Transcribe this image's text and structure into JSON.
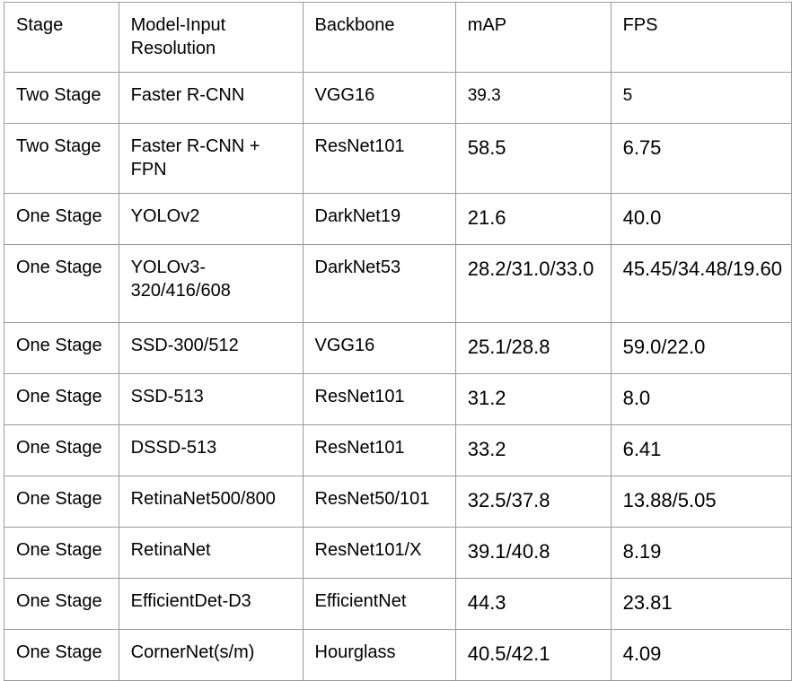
{
  "table": {
    "headers": [
      "Stage",
      "Model-Input Resolution",
      "Backbone",
      "mAP",
      "FPS"
    ],
    "rows": [
      {
        "stage": "Two Stage",
        "model": "Faster R-CNN",
        "backbone": "VGG16",
        "map": "39.3",
        "fps": "5"
      },
      {
        "stage": "Two Stage",
        "model": "Faster R-CNN + FPN",
        "backbone": "ResNet101",
        "map": "58.5",
        "fps": "6.75"
      },
      {
        "stage": "One Stage",
        "model": "YOLOv2",
        "backbone": "DarkNet19",
        "map": "21.6",
        "fps": "40.0"
      },
      {
        "stage": "One Stage",
        "model": "YOLOv3-320/416/608",
        "backbone": "DarkNet53",
        "map": "28.2/31.0/33.0",
        "fps": "45.45/34.48/19.60"
      },
      {
        "stage": "One Stage",
        "model": "SSD-300/512",
        "backbone": "VGG16",
        "map": "25.1/28.8",
        "fps": "59.0/22.0"
      },
      {
        "stage": "One Stage",
        "model": "SSD-513",
        "backbone": "ResNet101",
        "map": "31.2",
        "fps": "8.0"
      },
      {
        "stage": "One Stage",
        "model": "DSSD-513",
        "backbone": "ResNet101",
        "map": "33.2",
        "fps": "6.41"
      },
      {
        "stage": "One Stage",
        "model": "RetinaNet500/800",
        "backbone": "ResNet50/101",
        "map": "32.5/37.8",
        "fps": "13.88/5.05"
      },
      {
        "stage": "One Stage",
        "model": "RetinaNet",
        "backbone": "ResNet101/X",
        "map": "39.1/40.8",
        "fps": "8.19"
      },
      {
        "stage": "One Stage",
        "model": "EfficientDet-D3",
        "backbone": "EfficientNet",
        "map": "44.3",
        "fps": "23.81"
      },
      {
        "stage": "One Stage",
        "model": "CornerNet(s/m)",
        "backbone": "Hourglass",
        "map": "40.5/42.1",
        "fps": "4.09"
      }
    ]
  }
}
